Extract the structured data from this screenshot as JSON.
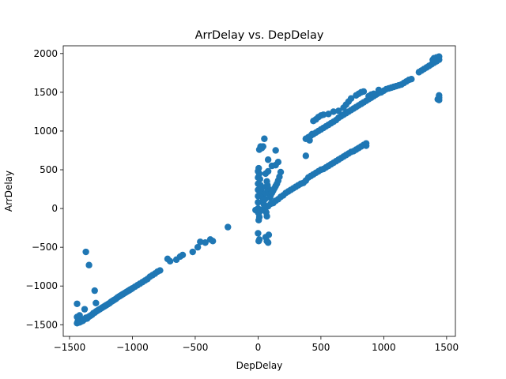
{
  "chart_data": {
    "type": "scatter",
    "title": "ArrDelay vs. DepDelay",
    "xlabel": "DepDelay",
    "ylabel": "ArrDelay",
    "xlim": [
      -1550,
      1570
    ],
    "ylim": [
      -1650,
      2100
    ],
    "xticks": [
      -1500,
      -1000,
      -500,
      0,
      500,
      1000,
      1500
    ],
    "yticks": [
      -1500,
      -1000,
      -500,
      0,
      500,
      1000,
      1500,
      2000
    ],
    "xtick_labels": [
      "−1500",
      "−1000",
      "−500",
      "0",
      "500",
      "1000",
      "1500"
    ],
    "ytick_labels": [
      "−1500",
      "−1000",
      "−500",
      "0",
      "500",
      "1000",
      "1500",
      "2000"
    ],
    "grid": false,
    "series": [
      {
        "color": "#1f77b4",
        "points": [
          [
            -1440,
            -1480
          ],
          [
            -1435,
            -1460
          ],
          [
            -1430,
            -1420
          ],
          [
            -1425,
            -1450
          ],
          [
            -1420,
            -1470
          ],
          [
            -1415,
            -1440
          ],
          [
            -1410,
            -1460
          ],
          [
            -1400,
            -1430
          ],
          [
            -1395,
            -1450
          ],
          [
            -1390,
            -1440
          ],
          [
            -1380,
            -1430
          ],
          [
            -1370,
            -1410
          ],
          [
            -1360,
            -1420
          ],
          [
            -1350,
            -1400
          ],
          [
            -1340,
            -1390
          ],
          [
            -1330,
            -1380
          ],
          [
            -1320,
            -1370
          ],
          [
            -1310,
            -1350
          ],
          [
            -1300,
            -1345
          ],
          [
            -1290,
            -1330
          ],
          [
            -1280,
            -1320
          ],
          [
            -1270,
            -1310
          ],
          [
            -1260,
            -1300
          ],
          [
            -1250,
            -1290
          ],
          [
            -1240,
            -1280
          ],
          [
            -1230,
            -1270
          ],
          [
            -1220,
            -1260
          ],
          [
            -1210,
            -1250
          ],
          [
            -1200,
            -1240
          ],
          [
            -1190,
            -1230
          ],
          [
            -1180,
            -1220
          ],
          [
            -1170,
            -1205
          ],
          [
            -1160,
            -1195
          ],
          [
            -1150,
            -1185
          ],
          [
            -1140,
            -1175
          ],
          [
            -1130,
            -1165
          ],
          [
            -1120,
            -1150
          ],
          [
            -1110,
            -1140
          ],
          [
            -1100,
            -1130
          ],
          [
            -1090,
            -1120
          ],
          [
            -1080,
            -1110
          ],
          [
            -1070,
            -1100
          ],
          [
            -1060,
            -1090
          ],
          [
            -1050,
            -1080
          ],
          [
            -1040,
            -1070
          ],
          [
            -1030,
            -1060
          ],
          [
            -1020,
            -1050
          ],
          [
            -1010,
            -1040
          ],
          [
            -1000,
            -1030
          ],
          [
            -980,
            -1010
          ],
          [
            -960,
            -990
          ],
          [
            -940,
            -970
          ],
          [
            -920,
            -950
          ],
          [
            -900,
            -930
          ],
          [
            -880,
            -910
          ],
          [
            -860,
            -880
          ],
          [
            -840,
            -860
          ],
          [
            -820,
            -840
          ],
          [
            -800,
            -815
          ],
          [
            -780,
            -800
          ],
          [
            -720,
            -650
          ],
          [
            -700,
            -680
          ],
          [
            -650,
            -660
          ],
          [
            -620,
            -620
          ],
          [
            -600,
            -600
          ],
          [
            -520,
            -560
          ],
          [
            -480,
            -500
          ],
          [
            -460,
            -430
          ],
          [
            -420,
            -440
          ],
          [
            -380,
            -400
          ],
          [
            -360,
            -420
          ],
          [
            -240,
            -240
          ],
          [
            -1440,
            -1230
          ],
          [
            -1380,
            -1300
          ],
          [
            -1290,
            -1220
          ],
          [
            -1300,
            -1060
          ],
          [
            -1370,
            -560
          ],
          [
            -1345,
            -730
          ],
          [
            -1440,
            -1400
          ],
          [
            -1420,
            -1380
          ],
          [
            -20,
            -20
          ],
          [
            0,
            0
          ],
          [
            5,
            -60
          ],
          [
            10,
            -110
          ],
          [
            5,
            -150
          ],
          [
            0,
            -320
          ],
          [
            5,
            -420
          ],
          [
            10,
            -400
          ],
          [
            60,
            -370
          ],
          [
            70,
            -420
          ],
          [
            80,
            -440
          ],
          [
            85,
            -340
          ],
          [
            70,
            -100
          ],
          [
            65,
            -50
          ],
          [
            0,
            -50
          ],
          [
            20,
            -30
          ],
          [
            40,
            -10
          ],
          [
            60,
            10
          ],
          [
            80,
            30
          ],
          [
            100,
            60
          ],
          [
            120,
            70
          ],
          [
            140,
            100
          ],
          [
            160,
            120
          ],
          [
            180,
            150
          ],
          [
            200,
            170
          ],
          [
            220,
            200
          ],
          [
            240,
            220
          ],
          [
            260,
            240
          ],
          [
            280,
            260
          ],
          [
            300,
            280
          ],
          [
            320,
            300
          ],
          [
            340,
            320
          ],
          [
            360,
            330
          ],
          [
            380,
            360
          ],
          [
            0,
            80
          ],
          [
            0,
            160
          ],
          [
            0,
            240
          ],
          [
            0,
            320
          ],
          [
            0,
            400
          ],
          [
            0,
            480
          ],
          [
            5,
            520
          ],
          [
            10,
            450
          ],
          [
            15,
            380
          ],
          [
            20,
            300
          ],
          [
            25,
            250
          ],
          [
            30,
            200
          ],
          [
            35,
            150
          ],
          [
            40,
            100
          ],
          [
            45,
            60
          ],
          [
            50,
            40
          ],
          [
            55,
            120
          ],
          [
            60,
            200
          ],
          [
            65,
            280
          ],
          [
            70,
            350
          ],
          [
            75,
            300
          ],
          [
            80,
            260
          ],
          [
            85,
            220
          ],
          [
            90,
            180
          ],
          [
            95,
            140
          ],
          [
            100,
            170
          ],
          [
            110,
            200
          ],
          [
            120,
            230
          ],
          [
            130,
            260
          ],
          [
            140,
            290
          ],
          [
            150,
            320
          ],
          [
            160,
            360
          ],
          [
            170,
            410
          ],
          [
            180,
            470
          ],
          [
            60,
            450
          ],
          [
            80,
            480
          ],
          [
            110,
            550
          ],
          [
            140,
            560
          ],
          [
            160,
            600
          ],
          [
            80,
            630
          ],
          [
            140,
            750
          ],
          [
            40,
            800
          ],
          [
            50,
            900
          ],
          [
            20,
            800
          ],
          [
            10,
            760
          ],
          [
            30,
            780
          ],
          [
            380,
            680
          ],
          [
            400,
            400
          ],
          [
            420,
            420
          ],
          [
            440,
            440
          ],
          [
            460,
            460
          ],
          [
            480,
            480
          ],
          [
            500,
            500
          ],
          [
            520,
            510
          ],
          [
            540,
            530
          ],
          [
            560,
            550
          ],
          [
            580,
            570
          ],
          [
            600,
            590
          ],
          [
            620,
            610
          ],
          [
            640,
            630
          ],
          [
            660,
            650
          ],
          [
            680,
            670
          ],
          [
            700,
            690
          ],
          [
            720,
            710
          ],
          [
            740,
            730
          ],
          [
            760,
            740
          ],
          [
            780,
            760
          ],
          [
            800,
            780
          ],
          [
            820,
            800
          ],
          [
            840,
            820
          ],
          [
            860,
            840
          ],
          [
            860,
            810
          ],
          [
            380,
            900
          ],
          [
            400,
            920
          ],
          [
            410,
            880
          ],
          [
            420,
            940
          ],
          [
            430,
            960
          ],
          [
            440,
            960
          ],
          [
            460,
            980
          ],
          [
            480,
            1000
          ],
          [
            500,
            1020
          ],
          [
            520,
            1040
          ],
          [
            540,
            1060
          ],
          [
            560,
            1080
          ],
          [
            580,
            1100
          ],
          [
            600,
            1120
          ],
          [
            620,
            1140
          ],
          [
            640,
            1170
          ],
          [
            660,
            1190
          ],
          [
            680,
            1210
          ],
          [
            700,
            1230
          ],
          [
            720,
            1250
          ],
          [
            740,
            1270
          ],
          [
            760,
            1290
          ],
          [
            780,
            1310
          ],
          [
            800,
            1330
          ],
          [
            820,
            1350
          ],
          [
            840,
            1370
          ],
          [
            860,
            1390
          ],
          [
            880,
            1410
          ],
          [
            900,
            1430
          ],
          [
            920,
            1450
          ],
          [
            940,
            1470
          ],
          [
            960,
            1490
          ],
          [
            980,
            1500
          ],
          [
            1000,
            1520
          ],
          [
            1020,
            1540
          ],
          [
            1040,
            1550
          ],
          [
            1060,
            1560
          ],
          [
            1080,
            1570
          ],
          [
            1100,
            1580
          ],
          [
            1120,
            1590
          ],
          [
            1140,
            1600
          ],
          [
            1160,
            1620
          ],
          [
            1180,
            1640
          ],
          [
            1200,
            1660
          ],
          [
            1220,
            1670
          ],
          [
            440,
            1130
          ],
          [
            460,
            1150
          ],
          [
            480,
            1180
          ],
          [
            500,
            1200
          ],
          [
            520,
            1210
          ],
          [
            560,
            1220
          ],
          [
            600,
            1250
          ],
          [
            640,
            1260
          ],
          [
            680,
            1300
          ],
          [
            700,
            1340
          ],
          [
            720,
            1380
          ],
          [
            740,
            1420
          ],
          [
            780,
            1460
          ],
          [
            800,
            1480
          ],
          [
            820,
            1500
          ],
          [
            840,
            1510
          ],
          [
            880,
            1450
          ],
          [
            900,
            1470
          ],
          [
            920,
            1480
          ],
          [
            960,
            1530
          ],
          [
            1280,
            1760
          ],
          [
            1300,
            1780
          ],
          [
            1320,
            1800
          ],
          [
            1340,
            1820
          ],
          [
            1360,
            1840
          ],
          [
            1380,
            1860
          ],
          [
            1400,
            1880
          ],
          [
            1420,
            1900
          ],
          [
            1440,
            1920
          ],
          [
            1440,
            1960
          ],
          [
            1420,
            1950
          ],
          [
            1400,
            1940
          ],
          [
            1390,
            1920
          ],
          [
            1440,
            1430
          ],
          [
            1440,
            1460
          ],
          [
            1440,
            1400
          ],
          [
            1430,
            1410
          ]
        ]
      }
    ]
  }
}
